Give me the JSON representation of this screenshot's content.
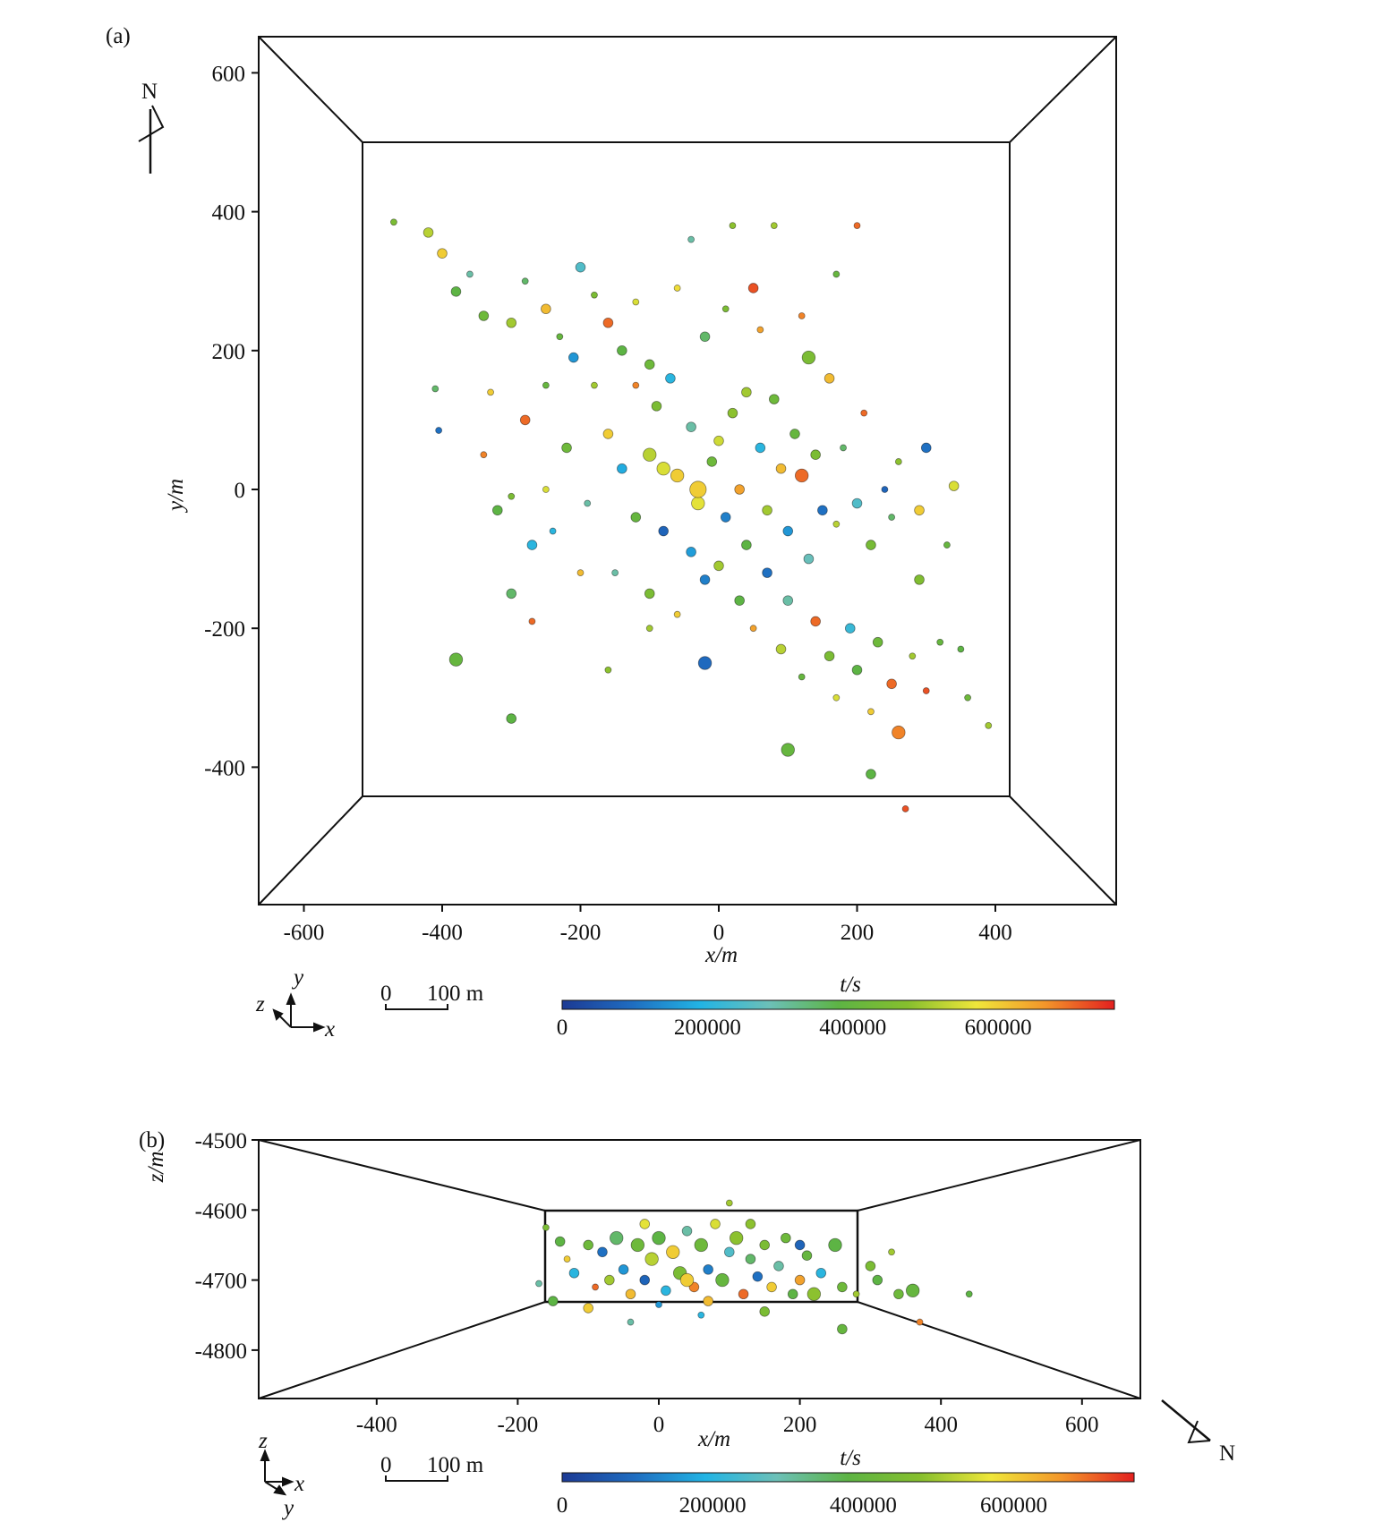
{
  "chart_data": [
    {
      "type": "scatter",
      "panel_label": "(a)",
      "view": "plan view (x-y)",
      "xlabel": "x/m",
      "ylabel": "y/m",
      "xlim": [
        -660,
        580
      ],
      "ylim": [
        -600,
        650
      ],
      "xticks": [
        -600,
        -400,
        -200,
        0,
        200,
        400
      ],
      "yticks": [
        -400,
        -200,
        0,
        200,
        400,
        600
      ],
      "inner_box": {
        "x": [
          -510,
          420
        ],
        "y": [
          -445,
          500
        ]
      },
      "colorbar": {
        "title": "t/s",
        "range": [
          0,
          760000
        ],
        "ticks": [
          0,
          200000,
          400000,
          600000
        ]
      },
      "scale_bar": {
        "zero": "0",
        "label": "100 m"
      },
      "triad": {
        "up": "y",
        "right": "x",
        "out": "z"
      },
      "north_label": "N",
      "point_fields": [
        "x",
        "y",
        "t",
        "size_class"
      ],
      "points": [
        [
          -470,
          385,
          450000,
          1
        ],
        [
          -420,
          370,
          520000,
          2
        ],
        [
          -400,
          340,
          600000,
          2
        ],
        [
          -380,
          285,
          380000,
          2
        ],
        [
          -360,
          310,
          300000,
          1
        ],
        [
          -340,
          250,
          420000,
          2
        ],
        [
          -300,
          240,
          500000,
          2
        ],
        [
          -280,
          300,
          350000,
          1
        ],
        [
          -250,
          260,
          620000,
          2
        ],
        [
          -230,
          220,
          400000,
          1
        ],
        [
          -200,
          320,
          250000,
          2
        ],
        [
          -180,
          280,
          450000,
          1
        ],
        [
          -160,
          240,
          700000,
          2
        ],
        [
          -140,
          200,
          380000,
          2
        ],
        [
          -120,
          270,
          550000,
          1
        ],
        [
          -100,
          180,
          420000,
          2
        ],
        [
          -60,
          290,
          580000,
          1
        ],
        [
          -40,
          360,
          300000,
          1
        ],
        [
          20,
          380,
          480000,
          1
        ],
        [
          80,
          380,
          500000,
          1
        ],
        [
          200,
          380,
          700000,
          1
        ],
        [
          170,
          310,
          400000,
          1
        ],
        [
          50,
          290,
          720000,
          2
        ],
        [
          10,
          260,
          450000,
          1
        ],
        [
          -20,
          220,
          350000,
          2
        ],
        [
          60,
          230,
          650000,
          1
        ],
        [
          120,
          250,
          680000,
          1
        ],
        [
          -210,
          190,
          150000,
          2
        ],
        [
          -180,
          150,
          500000,
          1
        ],
        [
          -250,
          150,
          400000,
          1
        ],
        [
          -280,
          100,
          700000,
          2
        ],
        [
          -330,
          140,
          600000,
          1
        ],
        [
          -410,
          145,
          350000,
          1
        ],
        [
          -405,
          85,
          100000,
          1
        ],
        [
          -340,
          50,
          680000,
          1
        ],
        [
          -300,
          -10,
          450000,
          1
        ],
        [
          -320,
          -30,
          380000,
          2
        ],
        [
          -270,
          -80,
          200000,
          2
        ],
        [
          -250,
          0,
          550000,
          1
        ],
        [
          -220,
          60,
          420000,
          2
        ],
        [
          -190,
          -20,
          300000,
          1
        ],
        [
          -160,
          80,
          600000,
          2
        ],
        [
          -140,
          30,
          180000,
          2
        ],
        [
          -120,
          -40,
          400000,
          2
        ],
        [
          -100,
          50,
          520000,
          3
        ],
        [
          -90,
          120,
          450000,
          2
        ],
        [
          -80,
          -60,
          80000,
          2
        ],
        [
          -60,
          20,
          600000,
          3
        ],
        [
          -40,
          90,
          300000,
          2
        ],
        [
          -30,
          -20,
          560000,
          3
        ],
        [
          -10,
          40,
          420000,
          2
        ],
        [
          10,
          -40,
          120000,
          2
        ],
        [
          20,
          110,
          480000,
          2
        ],
        [
          30,
          0,
          650000,
          2
        ],
        [
          40,
          -80,
          380000,
          2
        ],
        [
          60,
          60,
          200000,
          2
        ],
        [
          70,
          -30,
          500000,
          2
        ],
        [
          80,
          130,
          420000,
          2
        ],
        [
          90,
          30,
          620000,
          2
        ],
        [
          100,
          -60,
          150000,
          2
        ],
        [
          110,
          80,
          400000,
          2
        ],
        [
          120,
          20,
          700000,
          3
        ],
        [
          130,
          -100,
          280000,
          2
        ],
        [
          140,
          50,
          450000,
          2
        ],
        [
          150,
          -30,
          100000,
          2
        ],
        [
          160,
          160,
          620000,
          2
        ],
        [
          170,
          -50,
          520000,
          1
        ],
        [
          180,
          60,
          350000,
          1
        ],
        [
          200,
          -20,
          250000,
          2
        ],
        [
          210,
          110,
          700000,
          1
        ],
        [
          220,
          -80,
          440000,
          2
        ],
        [
          240,
          0,
          80000,
          1
        ],
        [
          250,
          -40,
          350000,
          1
        ],
        [
          260,
          40,
          480000,
          1
        ],
        [
          290,
          -30,
          600000,
          2
        ],
        [
          300,
          60,
          100000,
          2
        ],
        [
          340,
          5,
          550000,
          2
        ],
        [
          330,
          -80,
          400000,
          1
        ],
        [
          -150,
          -120,
          300000,
          1
        ],
        [
          -100,
          -150,
          450000,
          2
        ],
        [
          -60,
          -180,
          600000,
          1
        ],
        [
          -20,
          -130,
          120000,
          2
        ],
        [
          0,
          -110,
          500000,
          2
        ],
        [
          30,
          -160,
          380000,
          2
        ],
        [
          50,
          -200,
          650000,
          1
        ],
        [
          70,
          -120,
          100000,
          2
        ],
        [
          90,
          -230,
          520000,
          2
        ],
        [
          100,
          -160,
          300000,
          2
        ],
        [
          120,
          -270,
          400000,
          1
        ],
        [
          140,
          -190,
          700000,
          2
        ],
        [
          160,
          -240,
          450000,
          2
        ],
        [
          170,
          -300,
          550000,
          1
        ],
        [
          190,
          -200,
          220000,
          2
        ],
        [
          200,
          -260,
          380000,
          2
        ],
        [
          220,
          -320,
          600000,
          1
        ],
        [
          230,
          -220,
          420000,
          2
        ],
        [
          250,
          -280,
          700000,
          2
        ],
        [
          260,
          -350,
          680000,
          3
        ],
        [
          280,
          -240,
          500000,
          1
        ],
        [
          290,
          -130,
          460000,
          2
        ],
        [
          300,
          -290,
          720000,
          1
        ],
        [
          320,
          -220,
          400000,
          1
        ],
        [
          350,
          -230,
          380000,
          1
        ],
        [
          360,
          -300,
          420000,
          1
        ],
        [
          390,
          -340,
          500000,
          1
        ],
        [
          -380,
          -245,
          400000,
          3
        ],
        [
          -300,
          -330,
          380000,
          2
        ],
        [
          -300,
          -150,
          350000,
          2
        ],
        [
          -270,
          -190,
          700000,
          1
        ],
        [
          -20,
          -250,
          90000,
          3
        ],
        [
          -100,
          -200,
          500000,
          1
        ],
        [
          100,
          -375,
          400000,
          3
        ],
        [
          220,
          -410,
          380000,
          2
        ],
        [
          270,
          -460,
          720000,
          1
        ],
        [
          -160,
          -260,
          480000,
          1
        ],
        [
          -200,
          -120,
          620000,
          1
        ],
        [
          -240,
          -60,
          200000,
          1
        ],
        [
          -40,
          -90,
          160000,
          2
        ],
        [
          0,
          70,
          540000,
          2
        ],
        [
          -70,
          160,
          200000,
          2
        ],
        [
          -30,
          0,
          600000,
          4
        ],
        [
          -80,
          30,
          550000,
          3
        ],
        [
          -120,
          150,
          680000,
          1
        ],
        [
          40,
          140,
          500000,
          2
        ],
        [
          130,
          190,
          450000,
          3
        ]
      ]
    },
    {
      "type": "scatter",
      "panel_label": "(b)",
      "view": "side view (x-z)",
      "xlabel": "x/m",
      "ylabel": "z/m",
      "xlim": [
        -570,
        660
      ],
      "ylim": [
        -4870,
        -4500
      ],
      "xticks": [
        -400,
        -200,
        0,
        200,
        400,
        600
      ],
      "yticks": [
        -4500,
        -4600,
        -4700,
        -4800
      ],
      "inner_box": {
        "x": [
          -175,
          260
        ],
        "z": [
          -4730,
          -4600
        ]
      },
      "colorbar": {
        "title": "t/s",
        "range": [
          0,
          760000
        ],
        "ticks": [
          0,
          200000,
          400000,
          600000
        ]
      },
      "scale_bar": {
        "zero": "0",
        "label": "100 m"
      },
      "triad": {
        "up": "z",
        "right": "x",
        "out": "y"
      },
      "north_label": "N",
      "point_fields": [
        "x",
        "z",
        "t",
        "size_class"
      ],
      "points": [
        [
          -170,
          -4705,
          300000,
          1
        ],
        [
          -160,
          -4625,
          450000,
          1
        ],
        [
          -150,
          -4730,
          380000,
          2
        ],
        [
          -130,
          -4670,
          600000,
          1
        ],
        [
          -120,
          -4690,
          200000,
          2
        ],
        [
          -100,
          -4650,
          420000,
          2
        ],
        [
          -90,
          -4710,
          700000,
          1
        ],
        [
          -80,
          -4660,
          100000,
          2
        ],
        [
          -70,
          -4700,
          500000,
          2
        ],
        [
          -60,
          -4640,
          350000,
          3
        ],
        [
          -50,
          -4685,
          150000,
          2
        ],
        [
          -40,
          -4720,
          620000,
          2
        ],
        [
          -30,
          -4650,
          420000,
          3
        ],
        [
          -20,
          -4700,
          80000,
          2
        ],
        [
          -10,
          -4670,
          520000,
          3
        ],
        [
          0,
          -4640,
          380000,
          3
        ],
        [
          10,
          -4715,
          200000,
          2
        ],
        [
          20,
          -4660,
          600000,
          3
        ],
        [
          30,
          -4690,
          450000,
          3
        ],
        [
          40,
          -4630,
          300000,
          2
        ],
        [
          50,
          -4710,
          680000,
          2
        ],
        [
          60,
          -4650,
          420000,
          3
        ],
        [
          70,
          -4685,
          120000,
          2
        ],
        [
          80,
          -4620,
          550000,
          2
        ],
        [
          90,
          -4700,
          400000,
          3
        ],
        [
          100,
          -4660,
          250000,
          2
        ],
        [
          110,
          -4640,
          480000,
          3
        ],
        [
          120,
          -4720,
          700000,
          2
        ],
        [
          130,
          -4670,
          350000,
          2
        ],
        [
          140,
          -4695,
          100000,
          2
        ],
        [
          150,
          -4650,
          450000,
          2
        ],
        [
          160,
          -4710,
          600000,
          2
        ],
        [
          170,
          -4680,
          300000,
          2
        ],
        [
          180,
          -4640,
          420000,
          2
        ],
        [
          190,
          -4720,
          380000,
          2
        ],
        [
          200,
          -4700,
          650000,
          2
        ],
        [
          210,
          -4665,
          400000,
          2
        ],
        [
          220,
          -4720,
          480000,
          3
        ],
        [
          230,
          -4690,
          200000,
          2
        ],
        [
          250,
          -4650,
          380000,
          3
        ],
        [
          260,
          -4710,
          420000,
          2
        ],
        [
          280,
          -4720,
          500000,
          1
        ],
        [
          300,
          -4680,
          450000,
          2
        ],
        [
          310,
          -4700,
          380000,
          2
        ],
        [
          330,
          -4660,
          500000,
          1
        ],
        [
          340,
          -4720,
          420000,
          2
        ],
        [
          360,
          -4715,
          400000,
          3
        ],
        [
          370,
          -4760,
          680000,
          1
        ],
        [
          440,
          -4720,
          380000,
          1
        ],
        [
          260,
          -4770,
          400000,
          2
        ],
        [
          -40,
          -4760,
          300000,
          1
        ],
        [
          60,
          -4750,
          200000,
          1
        ],
        [
          150,
          -4745,
          450000,
          2
        ],
        [
          100,
          -4590,
          500000,
          1
        ],
        [
          -100,
          -4740,
          600000,
          2
        ],
        [
          0,
          -4735,
          150000,
          1
        ],
        [
          -140,
          -4645,
          380000,
          2
        ],
        [
          130,
          -4620,
          480000,
          2
        ],
        [
          40,
          -4700,
          600000,
          3
        ],
        [
          -20,
          -4620,
          560000,
          2
        ],
        [
          200,
          -4650,
          80000,
          2
        ],
        [
          70,
          -4730,
          620000,
          2
        ]
      ]
    }
  ],
  "colormap": [
    "#1c3a94",
    "#1f6cc0",
    "#22b4e4",
    "#6cc0b8",
    "#5db444",
    "#86bf2e",
    "#efe63a",
    "#f3952a",
    "#e3201f"
  ]
}
